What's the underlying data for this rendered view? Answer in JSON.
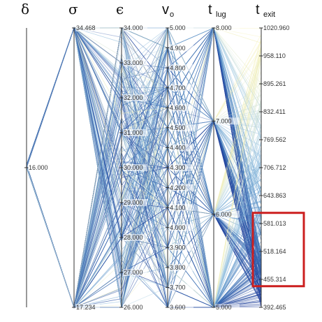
{
  "chart_data": {
    "type": "parallel_coordinates",
    "title": "",
    "axes": [
      {
        "key": "delta",
        "label": "δ",
        "sub": "",
        "ticks": [
          16.0
        ],
        "tick_labels": [
          "16.000"
        ],
        "range": [
          15.0,
          17.0
        ]
      },
      {
        "key": "sigma",
        "label": "σ",
        "sub": "",
        "ticks": [
          34.468,
          17.234
        ],
        "tick_labels": [
          "34.468",
          "17.234"
        ],
        "range": [
          17.234,
          34.468
        ]
      },
      {
        "key": "epsilon",
        "label": "ϵ",
        "sub": "",
        "ticks": [
          34.0,
          33.0,
          32.0,
          31.0,
          30.0,
          29.0,
          28.0,
          27.0,
          26.0
        ],
        "tick_labels": [
          "34.000",
          "33.000",
          "32.000",
          "31.000",
          "30.000",
          "29.000",
          "28.000",
          "27.000",
          "26.000"
        ],
        "range": [
          26.0,
          34.0
        ]
      },
      {
        "key": "vo",
        "label": "v",
        "sub": "o",
        "ticks": [
          5.0,
          4.9,
          4.8,
          4.7,
          4.6,
          4.5,
          4.4,
          4.3,
          4.2,
          4.1,
          4.0,
          3.9,
          3.8,
          3.7,
          3.6
        ],
        "tick_labels": [
          "5.000",
          "4.900",
          "4.800",
          "4.700",
          "4.600",
          "4.500",
          "4.400",
          "4.300",
          "4.200",
          "4.100",
          "4.000",
          "3.900",
          "3.800",
          "3.700",
          "3.600"
        ],
        "range": [
          3.6,
          5.0
        ]
      },
      {
        "key": "tlug",
        "label": "t",
        "sub": "lug",
        "ticks": [
          8.0,
          7.0,
          6.0,
          5.0
        ],
        "tick_labels": [
          "8.000",
          "7.000",
          "6.000",
          "5.000"
        ],
        "range": [
          5.0,
          8.0
        ]
      },
      {
        "key": "texit",
        "label": "t",
        "sub": "exit",
        "ticks": [
          1020.96,
          958.11,
          895.261,
          832.411,
          769.562,
          706.712,
          643.863,
          581.013,
          518.164,
          455.314,
          392.465
        ],
        "tick_labels": [
          "1020.960",
          "958.110",
          "895.261",
          "832.411",
          "769.562",
          "706.712",
          "643.863",
          "581.013",
          "518.164",
          "455.314",
          "392.465"
        ],
        "range": [
          392.465,
          1020.96
        ]
      }
    ],
    "highlight": {
      "axis": "texit",
      "range": [
        440.0,
        605.0
      ],
      "color": "#cc1f1f"
    },
    "colormap": [
      "#1f3d99",
      "#3d74b8",
      "#6aa2d0",
      "#a8cde6",
      "#e6eed5",
      "#f7f0b0"
    ],
    "line_count": 320,
    "grid": false,
    "legend": "none"
  }
}
